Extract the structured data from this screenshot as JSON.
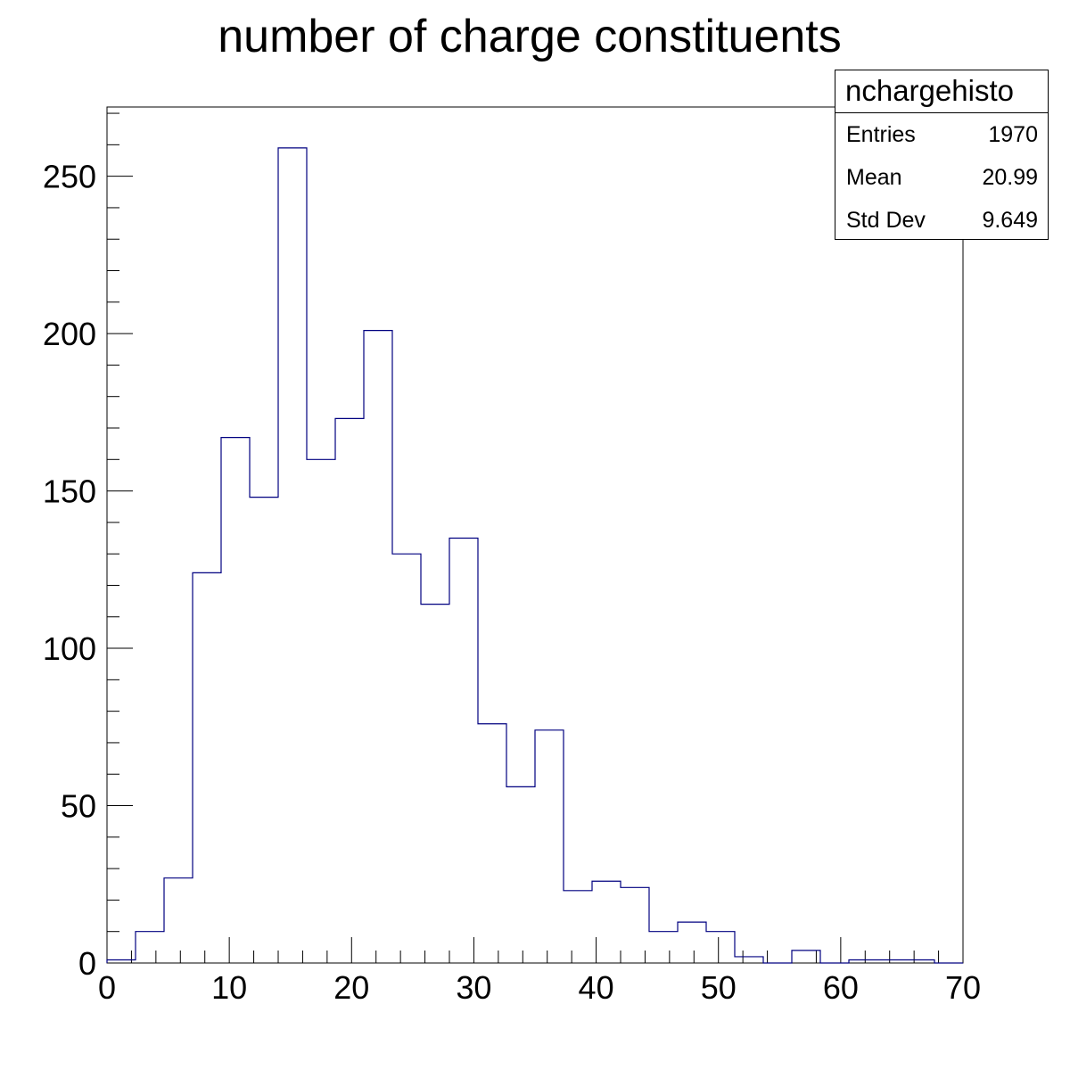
{
  "chart_data": {
    "type": "histogram",
    "title": "number of charge constituents",
    "xlabel": "",
    "ylabel": "",
    "xlim": [
      0,
      70
    ],
    "ylim": [
      0,
      272
    ],
    "x_ticks": [
      0,
      10,
      20,
      30,
      40,
      50,
      60,
      70
    ],
    "y_ticks": [
      0,
      50,
      100,
      150,
      200,
      250
    ],
    "bin_edges": [
      0,
      2.333,
      4.667,
      7,
      9.333,
      11.667,
      14,
      16.333,
      18.667,
      21,
      23.333,
      25.667,
      28,
      30.333,
      32.667,
      35,
      37.333,
      39.667,
      42,
      44.333,
      46.667,
      49,
      51.333,
      53.667,
      56,
      58.333,
      60.667,
      63,
      65.333,
      67.667,
      70
    ],
    "values": [
      1,
      10,
      27,
      124,
      167,
      148,
      259,
      160,
      173,
      201,
      130,
      114,
      135,
      76,
      56,
      74,
      23,
      26,
      24,
      10,
      13,
      10,
      2,
      0,
      4,
      0,
      1,
      1,
      1,
      0
    ],
    "grid": false,
    "line_color": "#000080",
    "stats": {
      "title": "nchargehisto",
      "rows": [
        {
          "label": "Entries",
          "value": "1970"
        },
        {
          "label": "Mean",
          "value": "20.99"
        },
        {
          "label": "Std Dev",
          "value": "9.649"
        }
      ]
    }
  }
}
